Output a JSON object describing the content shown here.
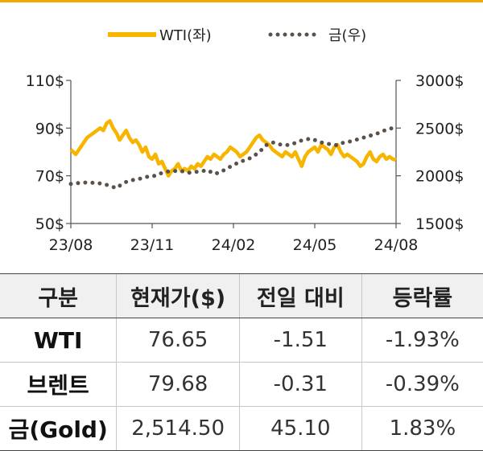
{
  "chart_data": {
    "type": "line",
    "legend": {
      "placement": "top-center"
    },
    "x_ticks": [
      "23/08",
      "23/11",
      "24/02",
      "24/05",
      "24/08"
    ],
    "y_left": {
      "ticks": [
        "110$",
        "90$",
        "70$",
        "50$"
      ],
      "ylim": [
        50,
        110
      ]
    },
    "y_right": {
      "ticks": [
        "3000$",
        "2500$",
        "2000$",
        "1500$"
      ],
      "ylim": [
        1500,
        3000
      ]
    },
    "series": [
      {
        "name": "WTI(좌)",
        "axis": "left",
        "color": "#f7b500",
        "style": "solid",
        "x": [
          0,
          0.015,
          0.03,
          0.05,
          0.07,
          0.09,
          0.1,
          0.11,
          0.12,
          0.13,
          0.14,
          0.15,
          0.16,
          0.17,
          0.18,
          0.19,
          0.2,
          0.21,
          0.22,
          0.23,
          0.24,
          0.25,
          0.26,
          0.27,
          0.28,
          0.29,
          0.3,
          0.31,
          0.32,
          0.33,
          0.34,
          0.35,
          0.36,
          0.37,
          0.38,
          0.39,
          0.4,
          0.41,
          0.42,
          0.43,
          0.44,
          0.45,
          0.46,
          0.47,
          0.48,
          0.49,
          0.5,
          0.51,
          0.52,
          0.53,
          0.54,
          0.55,
          0.56,
          0.57,
          0.58,
          0.59,
          0.6,
          0.61,
          0.62,
          0.63,
          0.64,
          0.65,
          0.66,
          0.67,
          0.68,
          0.69,
          0.7,
          0.71,
          0.72,
          0.73,
          0.74,
          0.75,
          0.76,
          0.77,
          0.78,
          0.79,
          0.8,
          0.81,
          0.82,
          0.83,
          0.84,
          0.85,
          0.86,
          0.87,
          0.88,
          0.89,
          0.9,
          0.91,
          0.92,
          0.93,
          0.94,
          0.95,
          0.96,
          0.97,
          0.98,
          0.99,
          1.0
        ],
        "y": [
          81,
          79,
          82,
          86,
          88,
          90,
          89,
          92,
          93,
          90,
          88,
          85,
          87,
          89,
          86,
          84,
          85,
          83,
          80,
          82,
          78,
          77,
          79,
          75,
          76,
          73,
          70,
          72,
          73,
          75,
          72,
          73,
          72,
          74,
          73,
          75,
          74,
          76,
          78,
          77,
          79,
          78,
          77,
          79,
          80,
          82,
          81,
          80,
          78,
          79,
          80,
          82,
          84,
          86,
          87,
          85,
          84,
          83,
          81,
          80,
          79,
          78,
          80,
          79,
          78,
          80,
          77,
          74,
          78,
          80,
          81,
          82,
          80,
          83,
          82,
          81,
          79,
          82,
          83,
          80,
          78,
          79,
          78,
          77,
          76,
          74,
          75,
          78,
          80,
          77,
          76,
          78,
          79,
          77,
          78,
          77,
          76.65
        ]
      },
      {
        "name": "금(우)",
        "axis": "right",
        "color": "#5a524a",
        "style": "dotted",
        "x": [
          0,
          0.04,
          0.08,
          0.1,
          0.12,
          0.14,
          0.16,
          0.18,
          0.2,
          0.22,
          0.24,
          0.26,
          0.28,
          0.3,
          0.32,
          0.34,
          0.36,
          0.38,
          0.4,
          0.42,
          0.44,
          0.46,
          0.48,
          0.5,
          0.52,
          0.54,
          0.56,
          0.58,
          0.6,
          0.62,
          0.64,
          0.66,
          0.68,
          0.7,
          0.72,
          0.74,
          0.76,
          0.78,
          0.8,
          0.82,
          0.84,
          0.86,
          0.88,
          0.9,
          0.92,
          0.94,
          0.96,
          0.98,
          1.0
        ],
        "y": [
          1915,
          1930,
          1925,
          1915,
          1895,
          1870,
          1920,
          1950,
          1960,
          1975,
          1995,
          2000,
          2030,
          2045,
          2050,
          2050,
          2030,
          2040,
          2045,
          2060,
          2020,
          2035,
          2080,
          2110,
          2150,
          2165,
          2200,
          2250,
          2320,
          2350,
          2330,
          2320,
          2330,
          2360,
          2380,
          2390,
          2360,
          2340,
          2330,
          2320,
          2350,
          2360,
          2380,
          2400,
          2420,
          2440,
          2470,
          2490,
          2514.5
        ]
      }
    ]
  },
  "table": {
    "headers": [
      "구분",
      "현재가($)",
      "전일 대비",
      "등락률"
    ],
    "rows": [
      {
        "label": "WTI",
        "price": "76.65",
        "change": "-1.51",
        "rate": "-1.93%"
      },
      {
        "label": "브렌트",
        "price": "79.68",
        "change": "-0.31",
        "rate": "-0.39%"
      },
      {
        "label": "금(Gold)",
        "price": "2,514.50",
        "change": "45.10",
        "rate": "1.83%"
      }
    ]
  }
}
